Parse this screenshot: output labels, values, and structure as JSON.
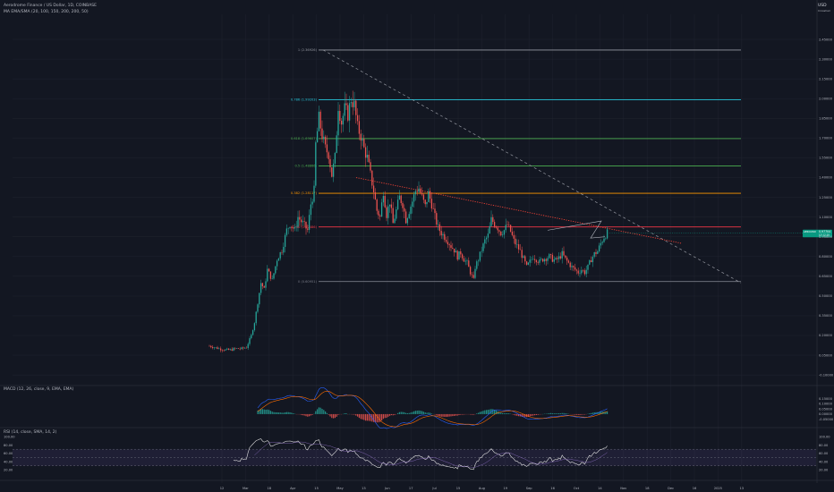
{
  "header": {
    "symbol_line": "Aerodrome Finance / US Dollar, 1D, COINBASE",
    "ma_line": "MA EMA/SMA (20, 100, 150, 200, 200, 50)",
    "currency": "USD",
    "currency_sub": "Crosshair",
    "macd_label": "MACD (12, 26, close, 9, EMA, EMA)",
    "rsi_label": "RSI (14, close, SMA, 14, 2)"
  },
  "colors": {
    "background": "#131722",
    "up": "#26a69a",
    "down": "#ef5350",
    "fib_0": "#787b86",
    "fib_0382": "#f23645",
    "fib_05": "#ff9800",
    "fib_0618": "#4caf50",
    "fib_0786": "#26c6da",
    "fib_1": "#9598a1",
    "trend_red": "#f44336",
    "trend_grey": "#9598a1",
    "rsi_band": "#7e57c2",
    "price_tag": "#089981"
  },
  "price_tag": {
    "value": "0.97704",
    "sub": "1D 12:10"
  },
  "chart_data": [
    {
      "type": "candlestick",
      "title": "Aerodrome Finance / US Dollar, 1D, COINBASE",
      "x_ticks": [
        "12",
        "Mar",
        "18",
        "Apr",
        "15",
        "May",
        "13",
        "Jun",
        "17",
        "Jul",
        "15",
        "Aug",
        "19",
        "Sep",
        "16",
        "Oct",
        "14",
        "Nov",
        "18",
        "Dec",
        "16",
        "2025",
        "13"
      ],
      "y_ticks": [
        "2.45000",
        "2.30000",
        "2.15000",
        "2.00000",
        "1.85000",
        "1.70000",
        "1.55000",
        "1.40000",
        "1.25000",
        "1.10000",
        "0.95000",
        "0.80000",
        "0.65000",
        "0.50000",
        "0.35000",
        "0.20000",
        "0.05000",
        "-0.10000"
      ],
      "ylim": [
        -0.16,
        2.6
      ],
      "fib_levels": [
        {
          "label": "1 (2.36926)",
          "value": 2.369
        },
        {
          "label": "0.786 (1.99203)",
          "value": 1.992
        },
        {
          "label": "0.618 (1.69607)",
          "value": 1.696
        },
        {
          "label": "0.5 (1.48866)",
          "value": 1.489
        },
        {
          "label": "0.382 (1.28117)",
          "value": 1.281
        },
        {
          "label": "0.236 (1.02486)",
          "value": 1.025
        },
        {
          "label": "0 (0.60951)",
          "value": 0.61
        }
      ],
      "close_path": [
        [
          0,
          0.12
        ],
        [
          6,
          0.1
        ],
        [
          10,
          0.09
        ],
        [
          13,
          0.09
        ],
        [
          16,
          0.1
        ],
        [
          20,
          0.1
        ],
        [
          23,
          0.11
        ],
        [
          26,
          0.2
        ],
        [
          28,
          0.3
        ],
        [
          30,
          0.45
        ],
        [
          32,
          0.6
        ],
        [
          34,
          0.55
        ],
        [
          36,
          0.7
        ],
        [
          39,
          0.62
        ],
        [
          42,
          0.78
        ],
        [
          45,
          0.85
        ],
        [
          48,
          1.0
        ],
        [
          50,
          1.05
        ],
        [
          53,
          1.0
        ],
        [
          55,
          1.1
        ],
        [
          58,
          1.05
        ],
        [
          61,
          1.0
        ],
        [
          63,
          1.2
        ],
        [
          65,
          1.3
        ],
        [
          66,
          1.65
        ],
        [
          68,
          1.85
        ],
        [
          70,
          1.72
        ],
        [
          72,
          1.62
        ],
        [
          74,
          1.58
        ],
        [
          76,
          1.42
        ],
        [
          78,
          1.55
        ],
        [
          80,
          1.95
        ],
        [
          82,
          1.82
        ],
        [
          84,
          1.92
        ],
        [
          86,
          1.88
        ],
        [
          88,
          2.0
        ],
        [
          90,
          1.95
        ],
        [
          92,
          1.78
        ],
        [
          94,
          1.72
        ],
        [
          96,
          1.62
        ],
        [
          98,
          1.55
        ],
        [
          100,
          1.42
        ],
        [
          102,
          1.3
        ],
        [
          104,
          1.15
        ],
        [
          106,
          1.1
        ],
        [
          108,
          1.3
        ],
        [
          110,
          1.12
        ],
        [
          112,
          1.22
        ],
        [
          114,
          1.05
        ],
        [
          116,
          1.15
        ],
        [
          118,
          1.25
        ],
        [
          120,
          1.2
        ],
        [
          122,
          1.08
        ],
        [
          124,
          1.15
        ],
        [
          126,
          1.22
        ],
        [
          128,
          1.3
        ],
        [
          130,
          1.32
        ],
        [
          132,
          1.25
        ],
        [
          134,
          1.18
        ],
        [
          136,
          1.28
        ],
        [
          138,
          1.2
        ],
        [
          140,
          1.1
        ],
        [
          142,
          1.02
        ],
        [
          144,
          0.98
        ],
        [
          146,
          0.95
        ],
        [
          148,
          0.92
        ],
        [
          150,
          0.88
        ],
        [
          152,
          0.85
        ],
        [
          154,
          0.8
        ],
        [
          156,
          0.83
        ],
        [
          158,
          0.78
        ],
        [
          160,
          0.75
        ],
        [
          162,
          0.68
        ],
        [
          164,
          0.62
        ],
        [
          165,
          0.72
        ],
        [
          167,
          0.78
        ],
        [
          169,
          0.85
        ],
        [
          171,
          0.92
        ],
        [
          173,
          0.96
        ],
        [
          175,
          1.08
        ],
        [
          177,
          1.05
        ],
        [
          179,
          1.02
        ],
        [
          181,
          0.98
        ],
        [
          183,
          1.0
        ],
        [
          185,
          1.04
        ],
        [
          187,
          0.99
        ],
        [
          189,
          0.92
        ],
        [
          191,
          0.88
        ],
        [
          193,
          0.84
        ],
        [
          195,
          0.78
        ],
        [
          197,
          0.72
        ],
        [
          199,
          0.76
        ],
        [
          201,
          0.8
        ],
        [
          203,
          0.78
        ],
        [
          205,
          0.76
        ],
        [
          207,
          0.78
        ],
        [
          209,
          0.79
        ],
        [
          211,
          0.8
        ],
        [
          213,
          0.78
        ],
        [
          215,
          0.77
        ],
        [
          217,
          0.79
        ],
        [
          219,
          0.82
        ],
        [
          221,
          0.78
        ],
        [
          223,
          0.75
        ],
        [
          225,
          0.72
        ],
        [
          227,
          0.7
        ],
        [
          229,
          0.68
        ],
        [
          231,
          0.7
        ],
        [
          233,
          0.68
        ],
        [
          235,
          0.72
        ],
        [
          237,
          0.78
        ],
        [
          239,
          0.82
        ],
        [
          241,
          0.84
        ],
        [
          243,
          0.9
        ],
        [
          245,
          0.95
        ],
        [
          247,
          0.98
        ]
      ]
    },
    {
      "type": "line",
      "title": "MACD (12, 26, close, 9, EMA, EMA)",
      "y_ticks": [
        "0.15000",
        "0.10000",
        "0.05000",
        "0.00000",
        "-0.05000"
      ],
      "ylim": [
        -0.07,
        0.19
      ]
    },
    {
      "type": "line",
      "title": "RSI (14, close, SMA, 14, 2)",
      "y_ticks": [
        "100.00",
        "80.00",
        "60.00",
        "40.00",
        "20.00"
      ],
      "ylim": [
        10,
        105
      ],
      "band": [
        30,
        70
      ]
    }
  ]
}
